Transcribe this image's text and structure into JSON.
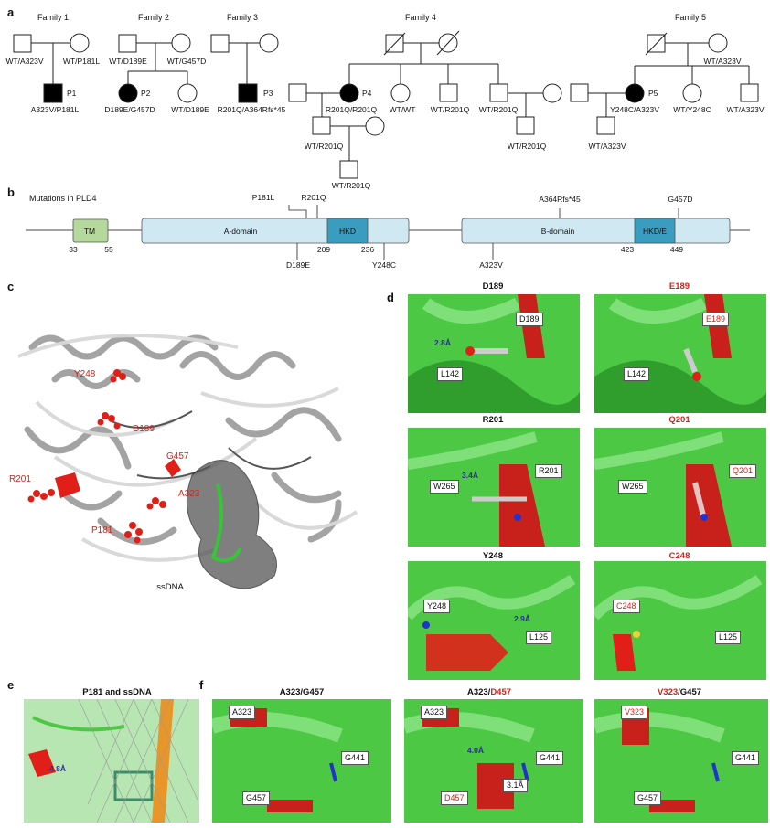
{
  "panel_labels": {
    "a": "a",
    "b": "b",
    "c": "c",
    "d": "d",
    "e": "e",
    "f": "f"
  },
  "pedigree": {
    "families": [
      {
        "title": "Family 1",
        "father": "WT/A323V",
        "mother": "WT/P181L",
        "children": [
          {
            "id": "P1",
            "genotype": "A323V/P181L"
          }
        ]
      },
      {
        "title": "Family 2",
        "father": "WT/D189E",
        "mother": "WT/G457D",
        "children": [
          {
            "id": "P2",
            "genotype": "D189E/G457D"
          },
          {
            "genotype": "WT/D189E"
          }
        ]
      },
      {
        "title": "Family 3",
        "children": [
          {
            "id": "P3",
            "genotype": "R201Q/A364Rfs*45"
          }
        ]
      },
      {
        "title": "Family 4",
        "children": [
          {
            "id": "P4",
            "genotype": "R201Q/R201Q"
          },
          {
            "genotype": "WT/WT"
          },
          {
            "genotype": "WT/R201Q"
          },
          {
            "genotype": "WT/R201Q"
          }
        ],
        "grandchildren": [
          {
            "genotype": "WT/R201Q"
          },
          {
            "genotype": "WT/R201Q"
          },
          {
            "genotype": "WT/R201Q"
          }
        ]
      },
      {
        "title": "Family 5",
        "mother": "WT/A323V",
        "children": [
          {
            "id": "P5",
            "genotype": "Y248C/A323V"
          },
          {
            "genotype": "WT/Y248C"
          },
          {
            "genotype": "WT/A323V"
          }
        ],
        "grandchildren": [
          {
            "genotype": "WT/A323V"
          }
        ]
      }
    ]
  },
  "domain_map": {
    "title": "Mutations in PLD4",
    "domains": [
      {
        "name": "TM"
      },
      {
        "name": "A-domain"
      },
      {
        "name": "HKD"
      },
      {
        "name": "B-domain"
      },
      {
        "name": "HKD/E"
      }
    ],
    "positions": [
      "33",
      "55",
      "209",
      "236",
      "423",
      "449"
    ],
    "mutations_above": [
      "P181L",
      "R201Q",
      "A364Rfs*45",
      "G457D"
    ],
    "mutations_below": [
      "D189E",
      "Y248C",
      "A323V"
    ]
  },
  "structure": {
    "residues": [
      "Y248",
      "D189",
      "G457",
      "R201",
      "A323",
      "P181"
    ],
    "ligand": "ssDNA"
  },
  "panel_d": {
    "rows": [
      {
        "wt_title": "D189",
        "mut_title": "E189",
        "wt_res": "D189",
        "mut_res": "E189",
        "partner": "L142",
        "partner2": "L142",
        "distance": "2.8Å"
      },
      {
        "wt_title": "R201",
        "mut_title": "Q201",
        "wt_res": "R201",
        "mut_res": "Q201",
        "partner": "W265",
        "partner2": "W265",
        "distance": "3.4Å"
      },
      {
        "wt_title": "Y248",
        "mut_title": "C248",
        "wt_res": "Y248",
        "mut_res": "C248",
        "partner": "L125",
        "partner2": "L125",
        "distance": "2.9Å"
      }
    ]
  },
  "panel_e": {
    "title": "P181 and ssDNA",
    "distance": "4.8Å"
  },
  "panel_f": {
    "titles": [
      {
        "a": "A323",
        "sep": "/",
        "b": "G457"
      },
      {
        "a": "A323",
        "sep": "/",
        "b": "D457"
      },
      {
        "a": "V323",
        "sep": "/",
        "b": "G457"
      }
    ],
    "labels": [
      {
        "r1": "A323",
        "r2": "G441",
        "r3": "G457"
      },
      {
        "r1": "A323",
        "r2": "G441",
        "r3": "D457",
        "d1": "4.0Å",
        "d2": "3.1Å"
      },
      {
        "r1": "V323",
        "r2": "G441",
        "r3": "G457"
      }
    ]
  },
  "colors": {
    "green": "#3fbf3a",
    "red": "#d0251c",
    "domain": "#cfe8f2",
    "hkd": "#3a9cbf",
    "tm": "#b4d99b"
  }
}
